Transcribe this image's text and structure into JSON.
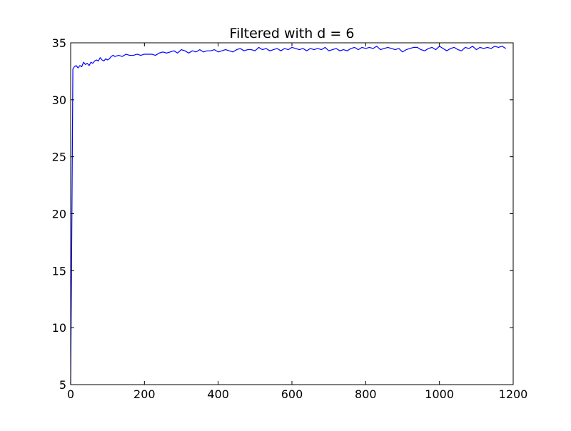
{
  "chart_data": {
    "type": "line",
    "title": "Filtered with d = 6",
    "xlabel": "",
    "ylabel": "",
    "xlim": [
      0,
      1200
    ],
    "ylim": [
      5,
      35
    ],
    "x_ticks": [
      0,
      200,
      400,
      600,
      800,
      1000,
      1200
    ],
    "y_ticks": [
      5,
      10,
      15,
      20,
      25,
      30,
      35
    ],
    "grid": false,
    "legend": "none",
    "series": [
      {
        "color": "#0000ff",
        "x": [
          0,
          3,
          6,
          10,
          15,
          20,
          25,
          30,
          35,
          40,
          45,
          50,
          55,
          60,
          65,
          70,
          75,
          80,
          85,
          90,
          95,
          100,
          105,
          110,
          115,
          120,
          130,
          140,
          150,
          160,
          170,
          180,
          190,
          200,
          210,
          220,
          230,
          240,
          250,
          260,
          270,
          280,
          290,
          300,
          310,
          320,
          330,
          340,
          350,
          360,
          370,
          380,
          390,
          400,
          410,
          420,
          430,
          440,
          450,
          460,
          470,
          480,
          490,
          500,
          510,
          520,
          530,
          540,
          550,
          560,
          570,
          580,
          590,
          600,
          610,
          620,
          630,
          640,
          650,
          660,
          670,
          680,
          690,
          700,
          710,
          720,
          730,
          740,
          750,
          760,
          770,
          780,
          790,
          800,
          810,
          820,
          830,
          840,
          850,
          860,
          870,
          880,
          890,
          900,
          910,
          920,
          930,
          940,
          950,
          960,
          970,
          980,
          990,
          1000,
          1010,
          1020,
          1030,
          1040,
          1050,
          1060,
          1070,
          1080,
          1090,
          1100,
          1110,
          1120,
          1130,
          1140,
          1150,
          1160,
          1170,
          1180
        ],
        "y": [
          5.0,
          18.0,
          32.7,
          32.9,
          33.0,
          32.8,
          33.0,
          32.9,
          33.3,
          33.1,
          33.2,
          33.0,
          33.3,
          33.2,
          33.4,
          33.5,
          33.4,
          33.7,
          33.5,
          33.4,
          33.6,
          33.5,
          33.6,
          33.8,
          33.9,
          33.8,
          33.9,
          33.8,
          34.0,
          33.9,
          33.9,
          34.0,
          33.9,
          34.0,
          34.0,
          34.0,
          33.9,
          34.1,
          34.2,
          34.1,
          34.2,
          34.3,
          34.1,
          34.4,
          34.3,
          34.1,
          34.3,
          34.2,
          34.4,
          34.2,
          34.3,
          34.3,
          34.4,
          34.2,
          34.3,
          34.4,
          34.3,
          34.2,
          34.4,
          34.5,
          34.3,
          34.4,
          34.4,
          34.3,
          34.6,
          34.4,
          34.5,
          34.3,
          34.4,
          34.5,
          34.3,
          34.5,
          34.4,
          34.6,
          34.5,
          34.4,
          34.5,
          34.3,
          34.5,
          34.4,
          34.5,
          34.4,
          34.6,
          34.3,
          34.4,
          34.5,
          34.3,
          34.4,
          34.3,
          34.5,
          34.6,
          34.4,
          34.6,
          34.5,
          34.6,
          34.5,
          34.7,
          34.4,
          34.5,
          34.6,
          34.5,
          34.4,
          34.5,
          34.2,
          34.4,
          34.5,
          34.6,
          34.6,
          34.4,
          34.3,
          34.5,
          34.6,
          34.4,
          34.7,
          34.5,
          34.3,
          34.5,
          34.6,
          34.4,
          34.3,
          34.6,
          34.5,
          34.7,
          34.4,
          34.6,
          34.5,
          34.6,
          34.5,
          34.7,
          34.6,
          34.7,
          34.5
        ]
      }
    ]
  }
}
